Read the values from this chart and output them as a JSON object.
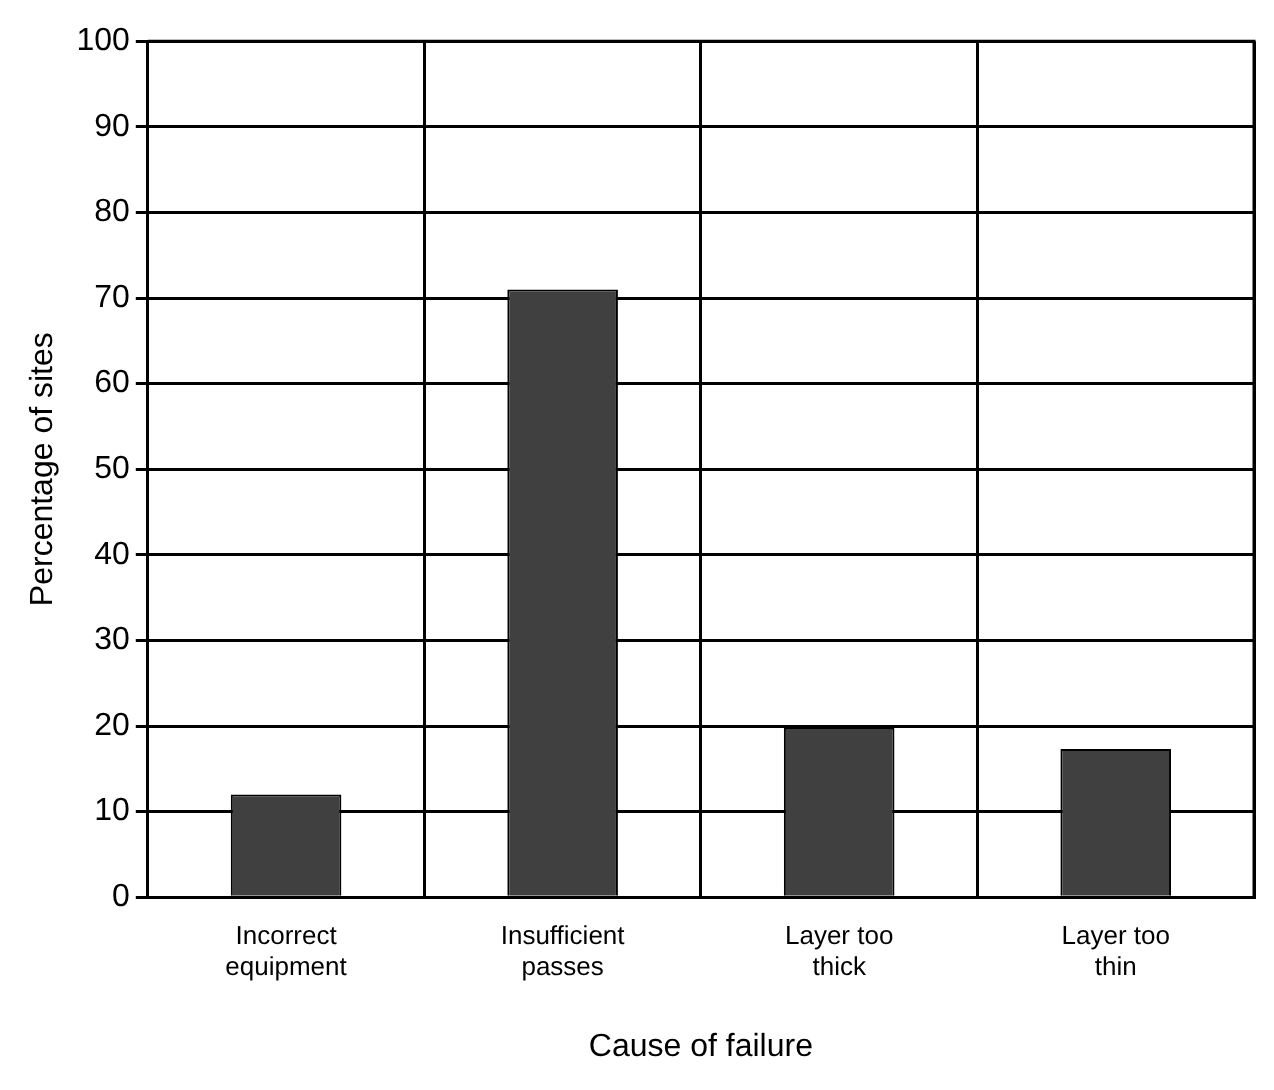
{
  "chart_data": {
    "type": "bar",
    "xlabel": "Cause of failure",
    "ylabel": "Percentage of sites",
    "categories": [
      "Incorrect\nequipment",
      "Insufficient\npasses",
      "Layer too\nthick",
      "Layer too\nthin"
    ],
    "values": [
      12,
      71,
      19.8,
      17.3
    ],
    "color": "#404040",
    "ylim": [
      0,
      100
    ],
    "yticks": [
      0,
      10,
      20,
      30,
      40,
      50,
      60,
      70,
      80,
      90,
      100
    ],
    "grid": true,
    "legend": false
  }
}
